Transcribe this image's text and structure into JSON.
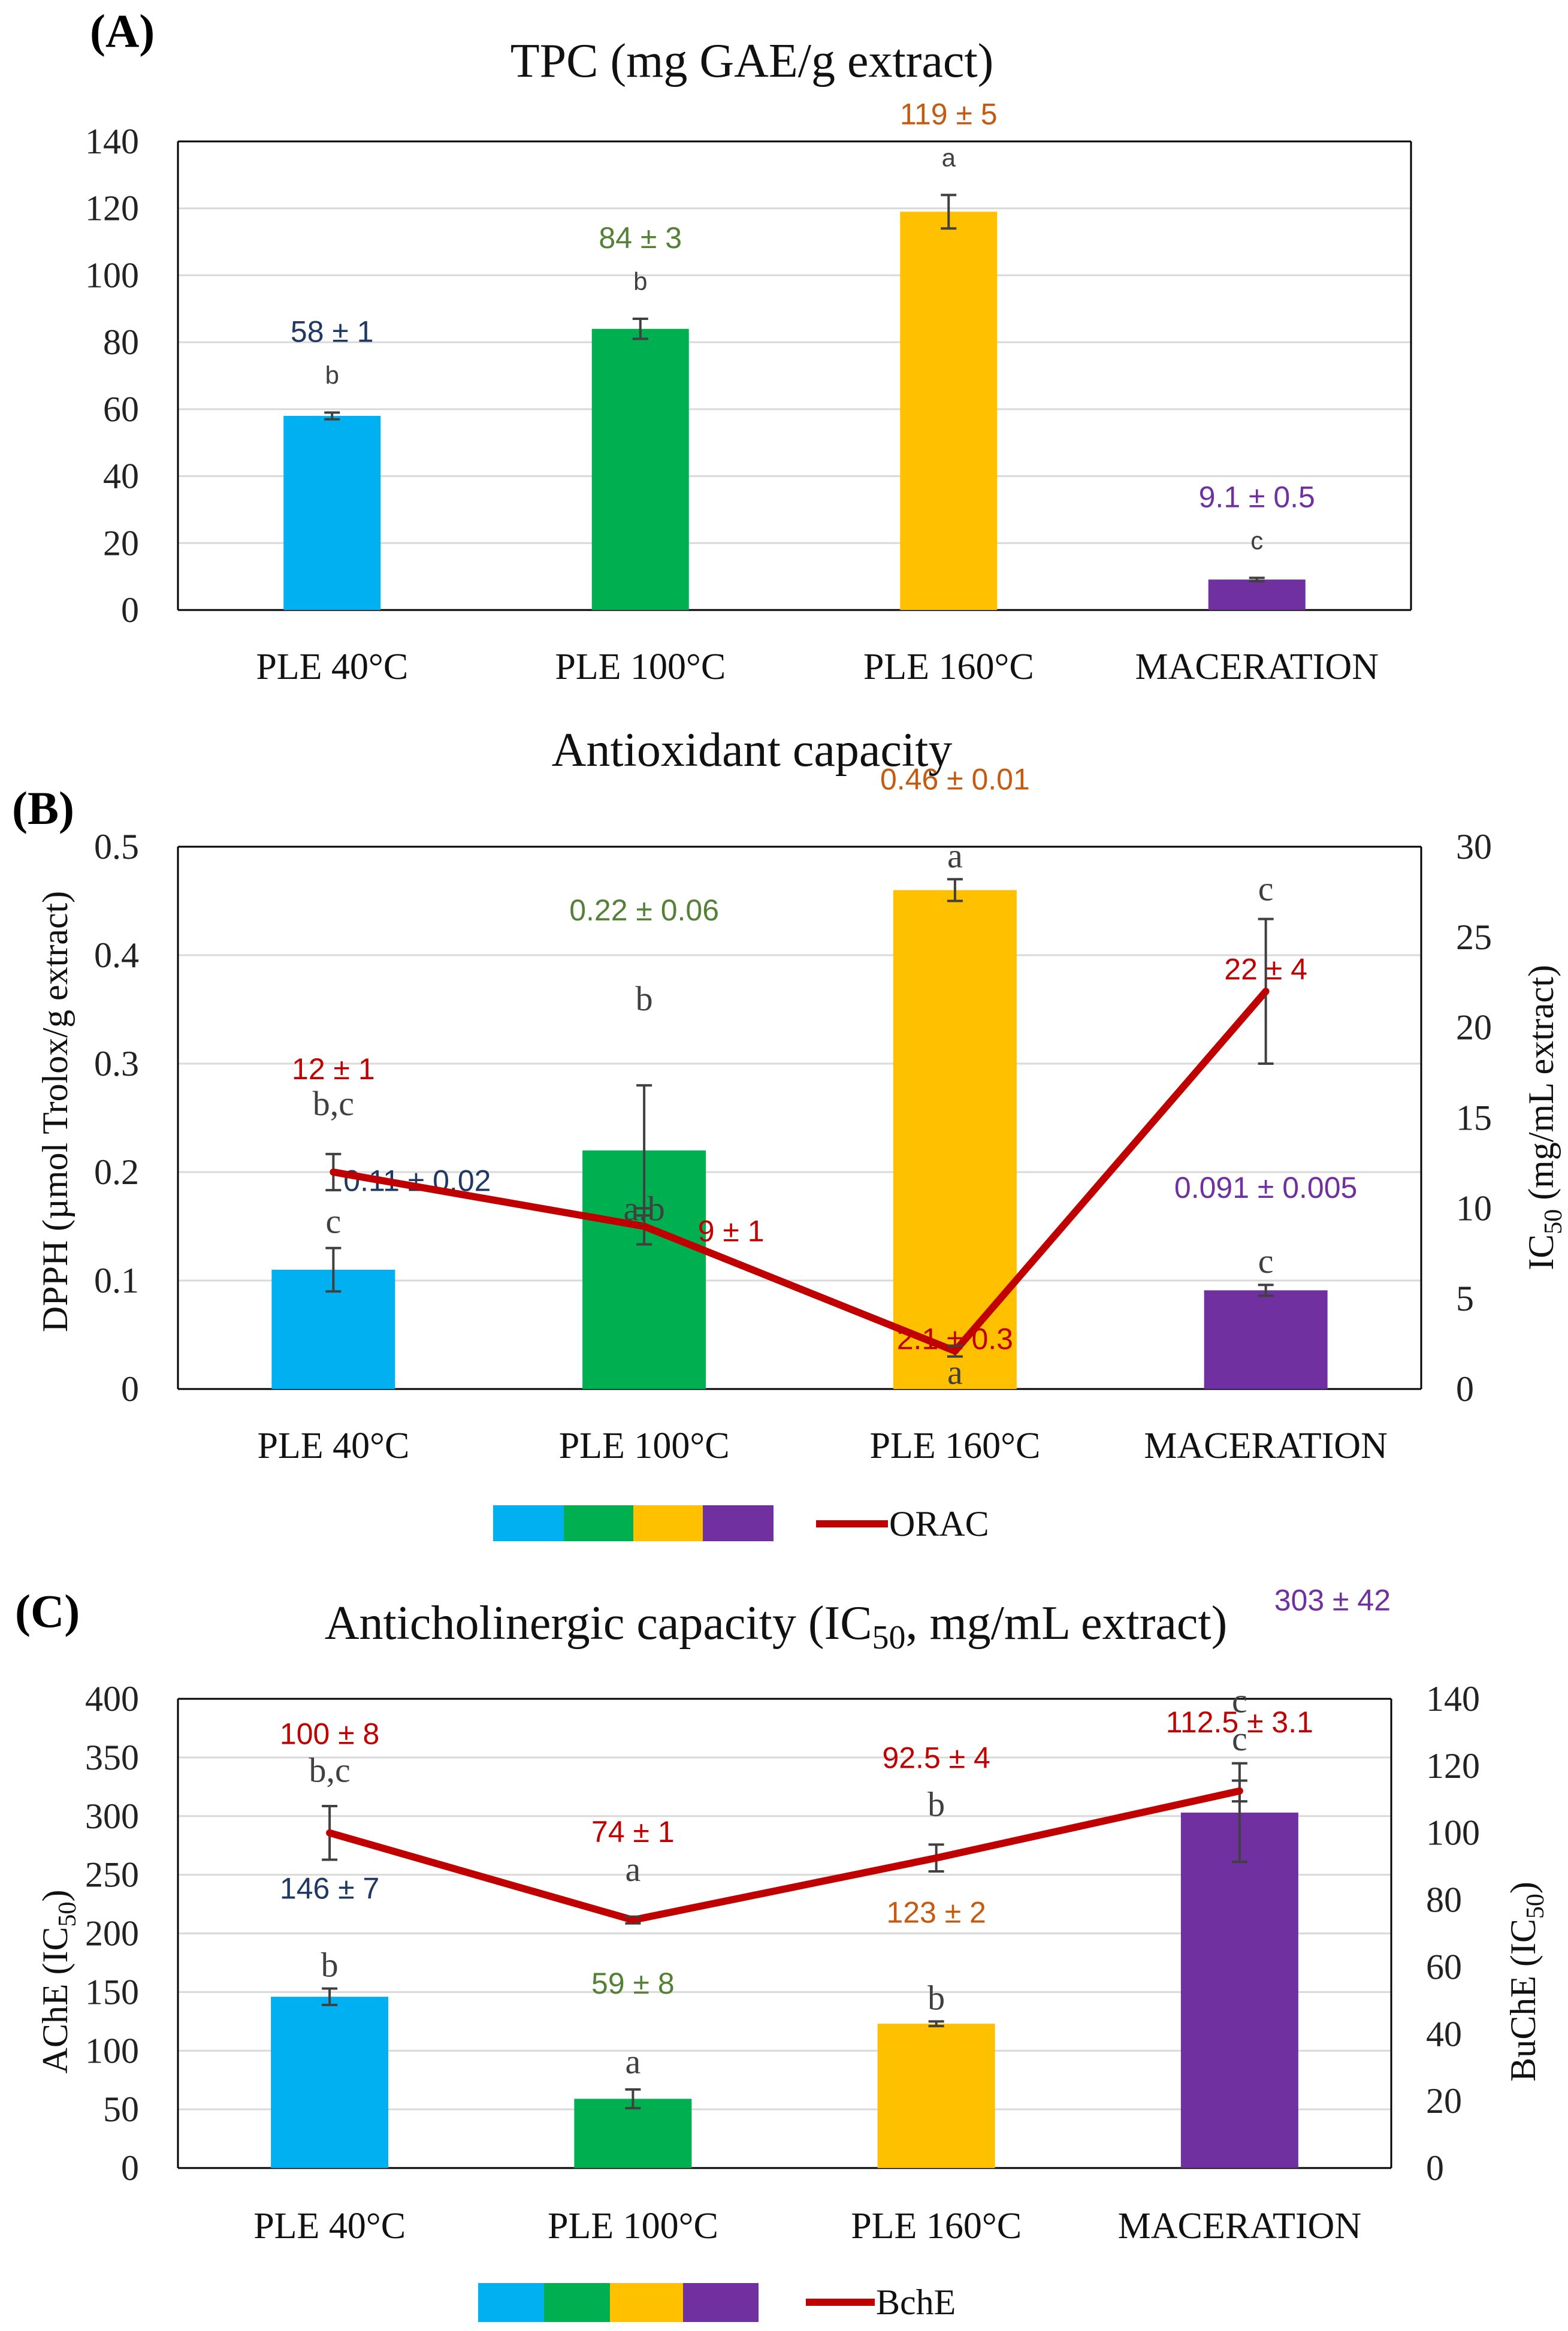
{
  "colors": {
    "PLE 40°C": "#00b0f0",
    "PLE 100°C": "#00b050",
    "PLE 160°C": "#ffc000",
    "MACERATION": "#7030a0",
    "line": "#c00000",
    "grid": "#d9d9d9",
    "axis": "#000000",
    "errorbar": "#404040"
  },
  "chart_data": [
    {
      "panel": "(A)",
      "type": "bar",
      "title": "TPC (mg GAE/g extract)",
      "categories": [
        "PLE 40°C",
        "PLE 100°C",
        "PLE 160°C",
        "MACERATION"
      ],
      "ylim": [
        0,
        140
      ],
      "yticks": [
        "0",
        "20",
        "40",
        "60",
        "80",
        "100",
        "120",
        "140"
      ],
      "ytick_values": [
        0,
        20,
        40,
        60,
        80,
        100,
        120,
        140
      ],
      "grid": true,
      "series": [
        {
          "name": "TPC",
          "values": [
            58,
            84,
            119,
            9.1
          ],
          "errors": [
            1,
            3,
            5,
            0.5
          ],
          "labels": [
            "58 ± 1",
            "84 ± 3",
            "119 ± 5",
            "9.1 ± 0.5"
          ],
          "label_colors": [
            "#1f3864",
            "#538135",
            "#c55a11",
            "#7030a0"
          ],
          "letters": [
            "b",
            "b",
            "a",
            "c"
          ]
        }
      ]
    },
    {
      "panel": "(B)",
      "type": "bar+line",
      "title": "Antioxidant capacity",
      "categories": [
        "PLE 40°C",
        "PLE 100°C",
        "PLE 160°C",
        "MACERATION"
      ],
      "ylabel_left": "DPPH (µmol Trolox/g extract)",
      "ylabel_right_main": "IC",
      "ylabel_right_sub": "50",
      "ylabel_right_rest": " (mg/mL extract)",
      "ylim_left": [
        0,
        0.5
      ],
      "yticks_left": [
        "0",
        "0.1",
        "0.2",
        "0.3",
        "0.4",
        "0.5"
      ],
      "ytick_values_left": [
        0,
        0.1,
        0.2,
        0.3,
        0.4,
        0.5
      ],
      "ylim_right": [
        0,
        30
      ],
      "yticks_right": [
        "0",
        "5",
        "10",
        "15",
        "20",
        "25",
        "30"
      ],
      "ytick_values_right": [
        0,
        5,
        10,
        15,
        20,
        25,
        30
      ],
      "grid": true,
      "series": [
        {
          "name": "DPPH",
          "kind": "bar",
          "axis": "left",
          "values": [
            0.11,
            0.22,
            0.46,
            0.091
          ],
          "errors": [
            0.02,
            0.06,
            0.01,
            0.005
          ],
          "labels": [
            "0.11 ± 0.02",
            "0.22 ± 0.06",
            "0.46 ± 0.01",
            "0.091 ± 0.005"
          ],
          "label_colors": [
            "#1f3864",
            "#538135",
            "#c55a11",
            "#7030a0"
          ],
          "letters": [
            "c",
            "b",
            "a",
            "c"
          ]
        },
        {
          "name": "ORAC",
          "kind": "line",
          "axis": "right",
          "values": [
            12,
            9,
            2.1,
            22
          ],
          "errors": [
            1,
            1,
            0.3,
            4
          ],
          "labels": [
            "12 ± 1",
            "9 ± 1",
            "2.1 ± 0.3",
            "22 ± 4"
          ],
          "letters": [
            "b,c",
            "a,b",
            "a",
            "c"
          ]
        }
      ],
      "legend": [
        "ORAC"
      ]
    },
    {
      "panel": "(C)",
      "type": "bar+line",
      "title_main": "Anticholinergic capacity (IC",
      "title_sub": "50",
      "title_rest": ", mg/mL extract)",
      "categories": [
        "PLE 40°C",
        "PLE 100°C",
        "PLE 160°C",
        "MACERATION"
      ],
      "ylabel_left_main": "AChE (IC",
      "ylabel_left_sub": "50",
      "ylabel_left_rest": ")",
      "ylabel_right_main": "BuChE (IC",
      "ylabel_right_sub": "50",
      "ylabel_right_rest": ")",
      "ylim_left": [
        0,
        400
      ],
      "yticks_left": [
        "0",
        "50",
        "100",
        "150",
        "200",
        "250",
        "300",
        "350",
        "400"
      ],
      "ytick_values_left": [
        0,
        50,
        100,
        150,
        200,
        250,
        300,
        350,
        400
      ],
      "ylim_right": [
        0,
        140
      ],
      "yticks_right": [
        "0",
        "20",
        "40",
        "60",
        "80",
        "100",
        "120",
        "140"
      ],
      "ytick_values_right": [
        0,
        20,
        40,
        60,
        80,
        100,
        120,
        140
      ],
      "grid": true,
      "series": [
        {
          "name": "AChE",
          "kind": "bar",
          "axis": "left",
          "values": [
            146,
            59,
            123,
            303
          ],
          "errors": [
            7,
            8,
            2,
            42
          ],
          "labels": [
            "146 ± 7",
            "59 ± 8",
            "123 ± 2",
            "303 ± 42"
          ],
          "label_colors": [
            "#1f3864",
            "#538135",
            "#c55a11",
            "#7030a0"
          ],
          "letters": [
            "b",
            "a",
            "b",
            "c"
          ]
        },
        {
          "name": "BchE",
          "kind": "line",
          "axis": "right",
          "values": [
            100,
            74,
            92.5,
            112.5
          ],
          "errors": [
            8,
            1,
            4,
            3.1
          ],
          "labels": [
            "100 ± 8",
            "74 ± 1",
            "92.5 ± 4",
            "112.5 ± 3.1"
          ],
          "letters": [
            "b,c",
            "a",
            "b",
            "c"
          ]
        }
      ],
      "legend": [
        "BchE"
      ]
    }
  ]
}
